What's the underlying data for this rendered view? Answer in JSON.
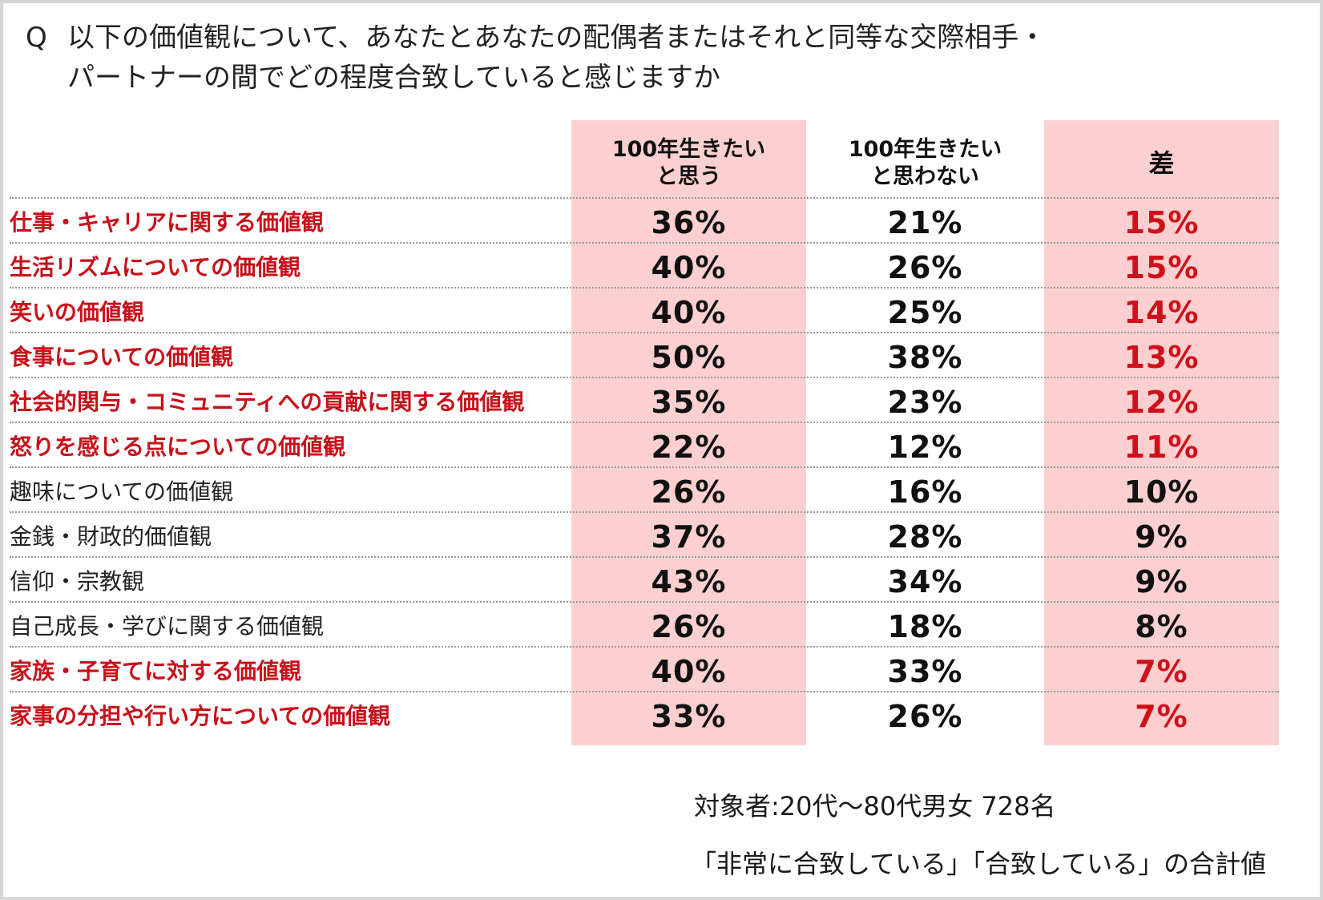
{
  "question": {
    "mark": "Q",
    "text_line1": "以下の価値観について、あなたとあなたの配偶者またはそれと同等な交際相手・",
    "text_line2": "パートナーの間でどの程度合致していると感じますか"
  },
  "chart_data": {
    "type": "table",
    "columns": [
      "100年生きたい\nと思う",
      "100年生きたい\nと思わない",
      "差"
    ],
    "rows": [
      {
        "label": "仕事・キャリアに関する価値観",
        "values": [
          "36%",
          "21%",
          "15%"
        ],
        "highlight": true
      },
      {
        "label": "生活リズムについての価値観",
        "values": [
          "40%",
          "26%",
          "15%"
        ],
        "highlight": true
      },
      {
        "label": "笑いの価値観",
        "values": [
          "40%",
          "25%",
          "14%"
        ],
        "highlight": true
      },
      {
        "label": "食事についての価値観",
        "values": [
          "50%",
          "38%",
          "13%"
        ],
        "highlight": true
      },
      {
        "label": "社会的関与・コミュニティへの貢献に関する価値観",
        "values": [
          "35%",
          "23%",
          "12%"
        ],
        "highlight": true
      },
      {
        "label": "怒りを感じる点についての価値観",
        "values": [
          "22%",
          "12%",
          "11%"
        ],
        "highlight": true
      },
      {
        "label": "趣味についての価値観",
        "values": [
          "26%",
          "16%",
          "10%"
        ],
        "highlight": false
      },
      {
        "label": "金銭・財政的価値観",
        "values": [
          "37%",
          "28%",
          "9%"
        ],
        "highlight": false
      },
      {
        "label": "信仰・宗教観",
        "values": [
          "43%",
          "34%",
          "9%"
        ],
        "highlight": false
      },
      {
        "label": "自己成長・学びに関する価値観",
        "values": [
          "26%",
          "18%",
          "8%"
        ],
        "highlight": false
      },
      {
        "label": "家族・子育てに対する価値観",
        "values": [
          "40%",
          "33%",
          "7%"
        ],
        "highlight": true
      },
      {
        "label": "家事の分担や行い方についての価値観",
        "values": [
          "33%",
          "26%",
          "7%"
        ],
        "highlight": true
      }
    ],
    "colors": {
      "highlight_text": "#c8101a",
      "column_fill": "#fcd0d0",
      "normal_text": "#222222"
    }
  },
  "notes": {
    "subjects": "対象者:20代～80代男女 728名",
    "definition": "「非常に合致している」「合致している」の合計値"
  }
}
